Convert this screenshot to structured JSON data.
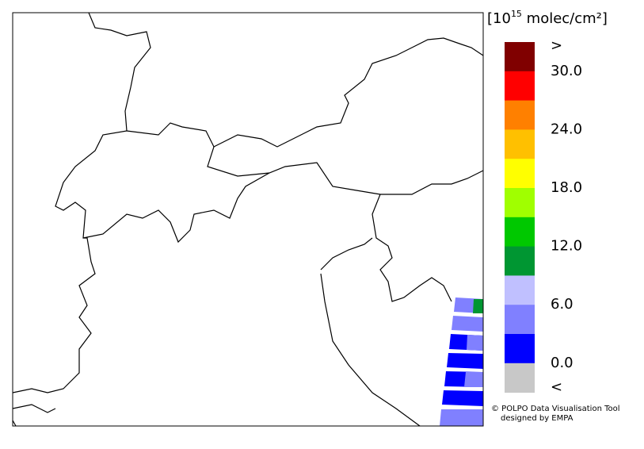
{
  "legend": {
    "unit_label": {
      "open": "[10",
      "exponent": "15",
      "rest": " molec/cm²]"
    },
    "colors": [
      "#800000",
      "#ff0000",
      "#ff8000",
      "#ffc000",
      "#ffff00",
      "#a0ff00",
      "#00c800",
      "#009632",
      "#c0c0ff",
      "#8080ff",
      "#0000ff",
      "#c8c8c8"
    ],
    "labels": [
      ">",
      "30.0",
      "24.0",
      "18.0",
      "12.0",
      "6.0",
      "0.0",
      "<"
    ]
  },
  "credit": {
    "line1": "© POLPO Data Visualisation Tool",
    "line2": "designed by EMPA"
  }
}
